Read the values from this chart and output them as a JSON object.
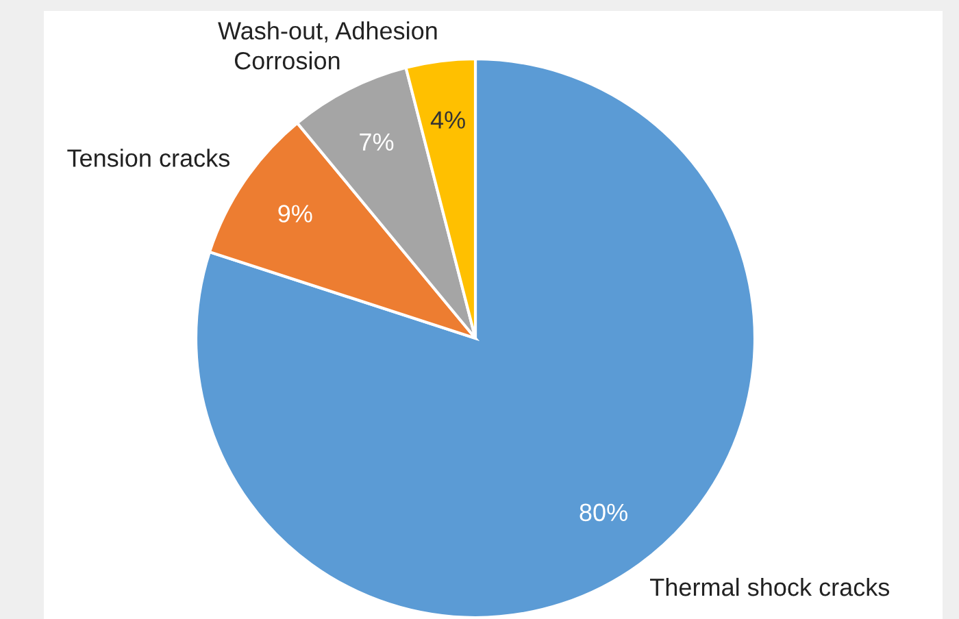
{
  "chart_data": {
    "type": "pie",
    "categories": [
      "Thermal shock cracks",
      "Tension cracks",
      "Corrosion",
      "Wash-out, Adhesion"
    ],
    "values": [
      80,
      9,
      7,
      4
    ],
    "colors": [
      "#5b9bd5",
      "#ed7d31",
      "#a5a5a5",
      "#ffc000"
    ],
    "value_labels": [
      "80%",
      "9%",
      "7%",
      "4%"
    ],
    "legend": false
  }
}
